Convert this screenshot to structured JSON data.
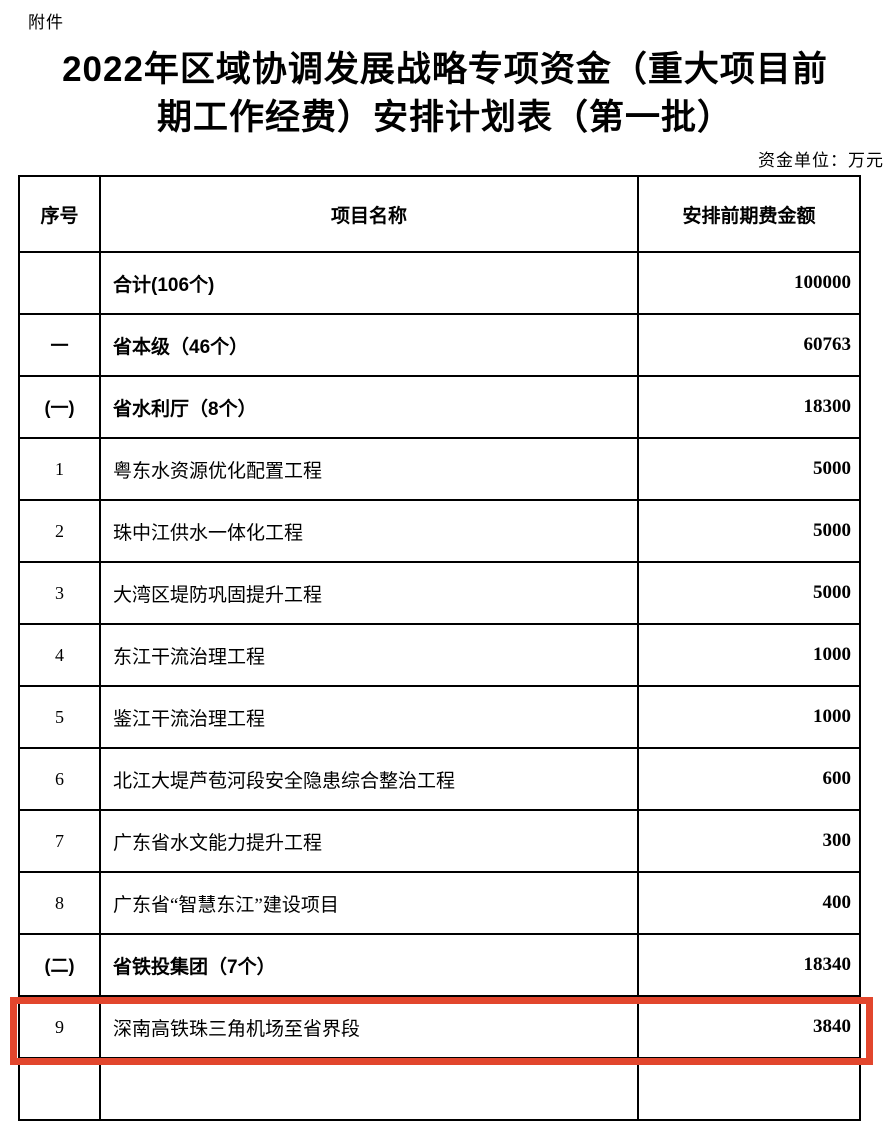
{
  "page": {
    "attachment_label": "附件",
    "title_line1": "2022年区域协调发展战略专项资金（重大项目前",
    "title_line2": "期工作经费）安排计划表（第一批）",
    "unit_note": "资金单位：万元"
  },
  "table": {
    "columns": [
      "序号",
      "项目名称",
      "安排前期费金额"
    ],
    "rows": [
      {
        "no": "",
        "name": "合计(106个)",
        "amount": "100000",
        "group": true,
        "highlighted": false
      },
      {
        "no": "一",
        "name": "省本级（46个）",
        "amount": "60763",
        "group": true,
        "highlighted": false
      },
      {
        "no": "(一)",
        "name": "省水利厅（8个）",
        "amount": "18300",
        "group": true,
        "highlighted": false
      },
      {
        "no": "1",
        "name": "粤东水资源优化配置工程",
        "amount": "5000",
        "group": false,
        "highlighted": false
      },
      {
        "no": "2",
        "name": "珠中江供水一体化工程",
        "amount": "5000",
        "group": false,
        "highlighted": false
      },
      {
        "no": "3",
        "name": "大湾区堤防巩固提升工程",
        "amount": "5000",
        "group": false,
        "highlighted": false
      },
      {
        "no": "4",
        "name": "东江干流治理工程",
        "amount": "1000",
        "group": false,
        "highlighted": false
      },
      {
        "no": "5",
        "name": "鉴江干流治理工程",
        "amount": "1000",
        "group": false,
        "highlighted": false
      },
      {
        "no": "6",
        "name": "北江大堤芦苞河段安全隐患综合整治工程",
        "amount": "600",
        "group": false,
        "highlighted": false
      },
      {
        "no": "7",
        "name": "广东省水文能力提升工程",
        "amount": "300",
        "group": false,
        "highlighted": false
      },
      {
        "no": "8",
        "name": "广东省“智慧东江”建设项目",
        "amount": "400",
        "group": false,
        "highlighted": false
      },
      {
        "no": "(二)",
        "name": "省铁投集团（7个）",
        "amount": "18340",
        "group": true,
        "highlighted": false
      },
      {
        "no": "9",
        "name": "深南高铁珠三角机场至省界段",
        "amount": "3840",
        "group": false,
        "highlighted": true
      }
    ]
  },
  "highlight": {
    "color": "#e2462d"
  }
}
